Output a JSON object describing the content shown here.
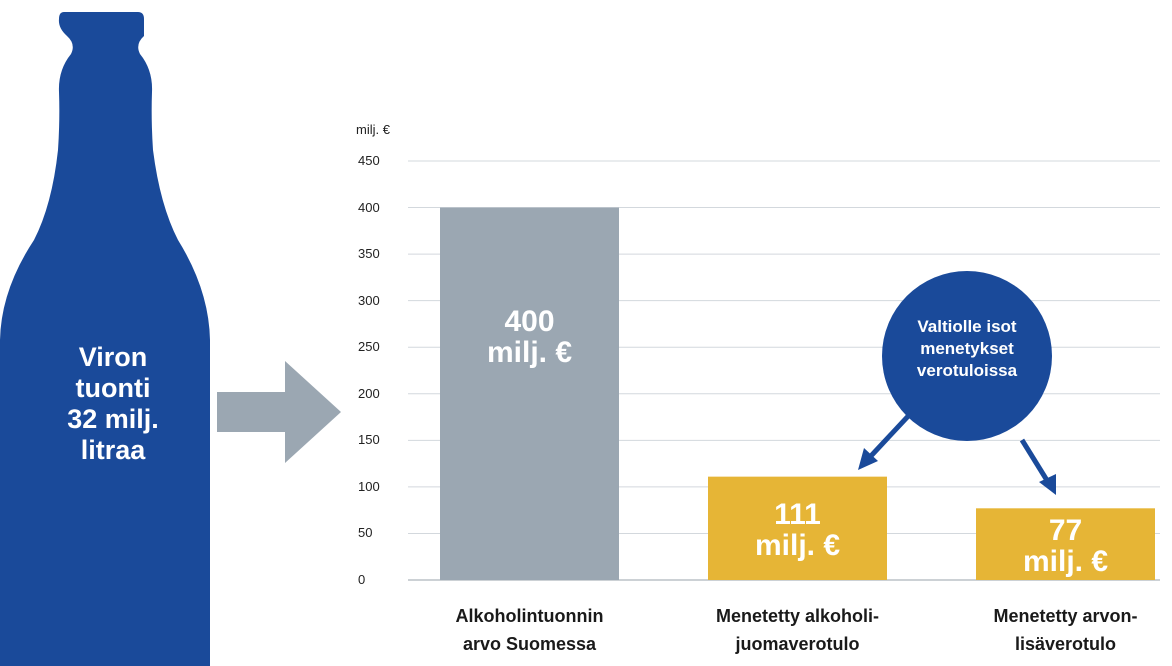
{
  "bottle": {
    "lines": [
      "Viron",
      "tuonti",
      "32 milj.",
      "litraa"
    ],
    "color": "#1a4a9a"
  },
  "callout": {
    "lines": [
      "Valtiolle isot",
      "menetykset",
      "verotuloissa"
    ],
    "color": "#1a4a9a"
  },
  "chart_data": {
    "type": "bar",
    "ylabel": "milj. €",
    "ylim": [
      0,
      450
    ],
    "yticks": [
      0,
      50,
      100,
      150,
      200,
      250,
      300,
      350,
      400,
      450
    ],
    "grid": true,
    "categories": [
      [
        "Alkoholintuonnin",
        "arvo Suomessa"
      ],
      [
        "Menetetty alkoholi-",
        "juomaverotulo"
      ],
      [
        "Menetetty arvon-",
        "lisäverotulo"
      ]
    ],
    "values": [
      400,
      111,
      77
    ],
    "data_labels": [
      [
        "400",
        "milj. €"
      ],
      [
        "111",
        "milj. €"
      ],
      [
        "77",
        "milj. €"
      ]
    ],
    "colors": [
      "#9ba7b2",
      "#e6b536",
      "#e6b536"
    ]
  }
}
